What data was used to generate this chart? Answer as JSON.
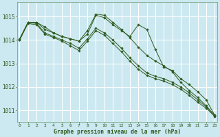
{
  "background_color": "#cce8f0",
  "plot_bg_color": "#cce8f0",
  "grid_color": "#ffffff",
  "line_color": "#2d5a1e",
  "xlabel": "Graphe pression niveau de la mer (hPa)",
  "ylim": [
    1010.5,
    1015.6
  ],
  "yticks": [
    1011,
    1012,
    1013,
    1014,
    1015
  ],
  "xticks": [
    0,
    1,
    2,
    3,
    4,
    5,
    6,
    7,
    8,
    9,
    10,
    11,
    12,
    13,
    14,
    15,
    16,
    17,
    18,
    19,
    20,
    21,
    22,
    23
  ],
  "series": [
    [
      1014.0,
      1014.75,
      1014.75,
      1014.55,
      1014.3,
      1014.15,
      1014.05,
      1013.95,
      1014.25,
      1015.05,
      1014.95,
      1014.65,
      1014.4,
      1014.15,
      1014.65,
      1014.45,
      1013.6,
      1012.85,
      1012.7,
      1012.35,
      1012.1,
      1011.8,
      1011.45,
      1010.8
    ],
    [
      1014.0,
      1014.75,
      1014.7,
      1014.3,
      1014.15,
      1014.0,
      1013.85,
      1013.65,
      1014.05,
      1014.5,
      1014.3,
      1014.0,
      1013.65,
      1013.25,
      1012.9,
      1012.6,
      1012.45,
      1012.35,
      1012.2,
      1012.0,
      1011.75,
      1011.45,
      1011.15,
      1010.75
    ],
    [
      1014.0,
      1014.7,
      1014.65,
      1014.25,
      1014.1,
      1013.95,
      1013.75,
      1013.55,
      1013.95,
      1014.4,
      1014.2,
      1013.85,
      1013.5,
      1013.1,
      1012.75,
      1012.5,
      1012.35,
      1012.25,
      1012.1,
      1011.9,
      1011.65,
      1011.35,
      1011.1,
      1010.75
    ],
    [
      1014.05,
      1014.75,
      1014.75,
      1014.45,
      1014.3,
      1014.15,
      1014.05,
      1013.95,
      1014.4,
      1015.1,
      1015.05,
      1014.75,
      1014.45,
      1014.1,
      1013.7,
      1013.35,
      1013.1,
      1012.9,
      1012.65,
      1012.2,
      1011.85,
      1011.55,
      1011.2,
      1010.8
    ]
  ]
}
